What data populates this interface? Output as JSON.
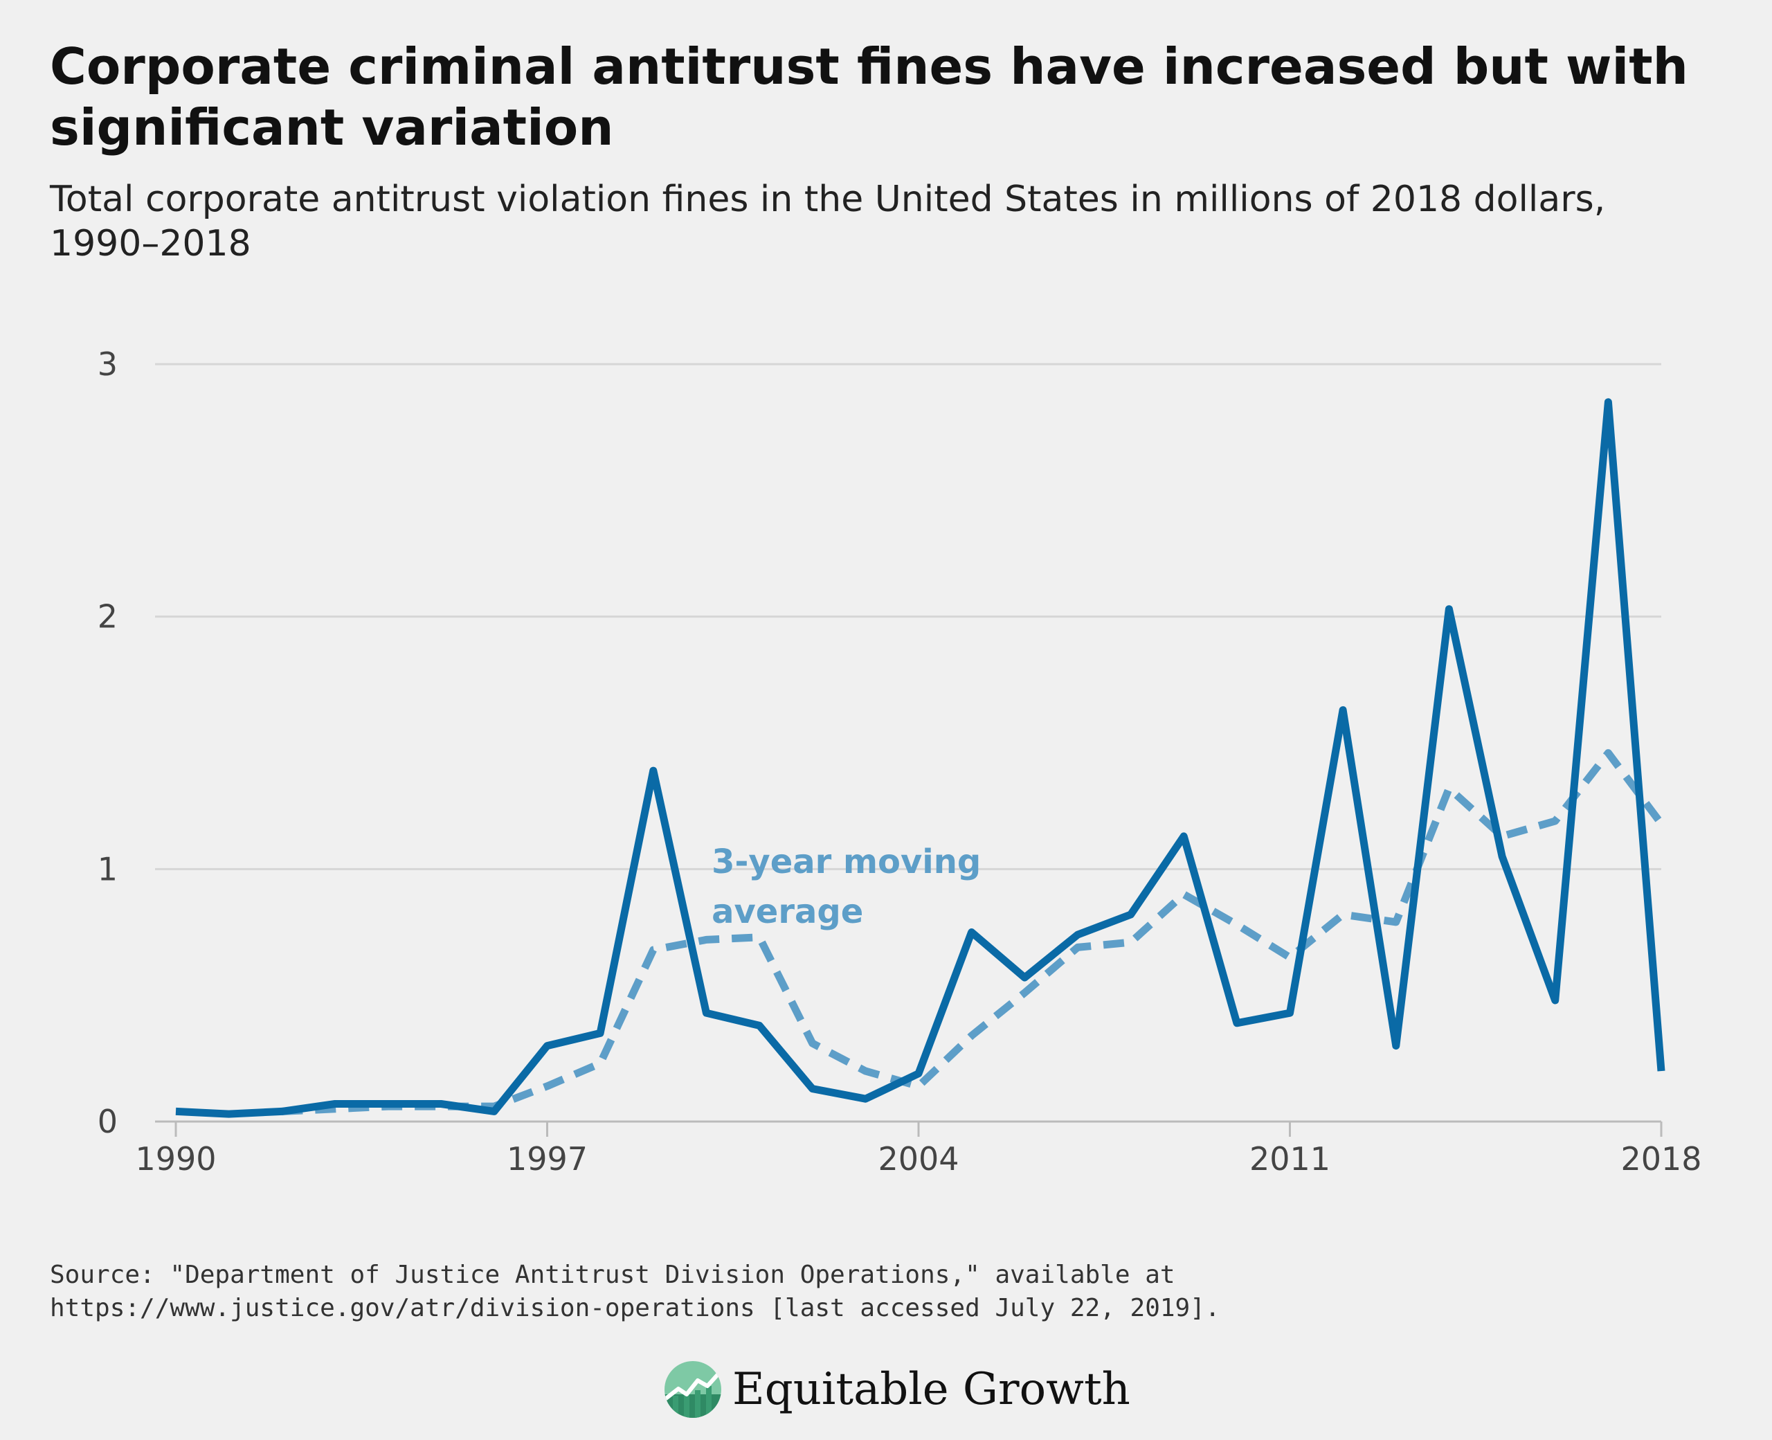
{
  "title": "Corporate criminal antitrust fines have increased but with significant variation",
  "subtitle": "Total corporate antitrust violation fines in the United States in millions of 2018 dollars, 1990–2018",
  "source": {
    "line1": "Source: \"Department of Justice Antitrust Division Operations,\" available at",
    "line2": "https://www.justice.gov/atr/division-operations [last accessed July 22, 2019]."
  },
  "logo": {
    "text": "Equitable Growth"
  },
  "colors": {
    "background": "#f0f0f0",
    "series_main": "#0a6aa6",
    "series_average": "#5d9ec8",
    "gridline": "#d6d6d6",
    "axis": "#bbbbbb"
  },
  "chart_data": {
    "type": "line",
    "title": "Corporate criminal antitrust fines have increased but with significant variation",
    "subtitle": "Total corporate antitrust violation fines in the United States in millions of 2018 dollars, 1990–2018",
    "xlabel": "",
    "ylabel": "",
    "xlim": [
      1990,
      2018
    ],
    "ylim": [
      0,
      3
    ],
    "x_ticks": [
      1990,
      1997,
      2004,
      2011,
      2018
    ],
    "y_ticks": [
      0,
      1,
      2,
      3
    ],
    "grid": "horizontal",
    "legend": "none",
    "x": [
      1990,
      1991,
      1992,
      1993,
      1994,
      1995,
      1996,
      1997,
      1998,
      1999,
      2000,
      2001,
      2002,
      2003,
      2004,
      2005,
      2006,
      2007,
      2008,
      2009,
      2010,
      2011,
      2012,
      2013,
      2014,
      2015,
      2016,
      2017,
      2018
    ],
    "series": [
      {
        "values": [
          0.04,
          0.03,
          0.04,
          0.07,
          0.07,
          0.07,
          0.04,
          0.3,
          0.35,
          1.39,
          0.43,
          0.38,
          0.13,
          0.09,
          0.19,
          0.75,
          0.57,
          0.74,
          0.82,
          1.13,
          0.39,
          0.43,
          1.63,
          0.3,
          2.03,
          1.05,
          0.48,
          2.85,
          0.2
        ]
      },
      {
        "values": [
          null,
          null,
          0.04,
          0.05,
          0.06,
          0.06,
          0.06,
          0.14,
          0.23,
          0.68,
          0.72,
          0.73,
          0.31,
          0.2,
          0.14,
          0.34,
          0.51,
          0.69,
          0.71,
          0.9,
          0.78,
          0.65,
          0.82,
          0.79,
          1.32,
          1.13,
          1.19,
          1.46,
          1.18
        ]
      }
    ],
    "annotations": [
      {
        "text_line1": "3-year moving",
        "text_line2": "average",
        "x": 2000.1,
        "y": 1.05,
        "color": "#5d9ec8"
      }
    ]
  }
}
